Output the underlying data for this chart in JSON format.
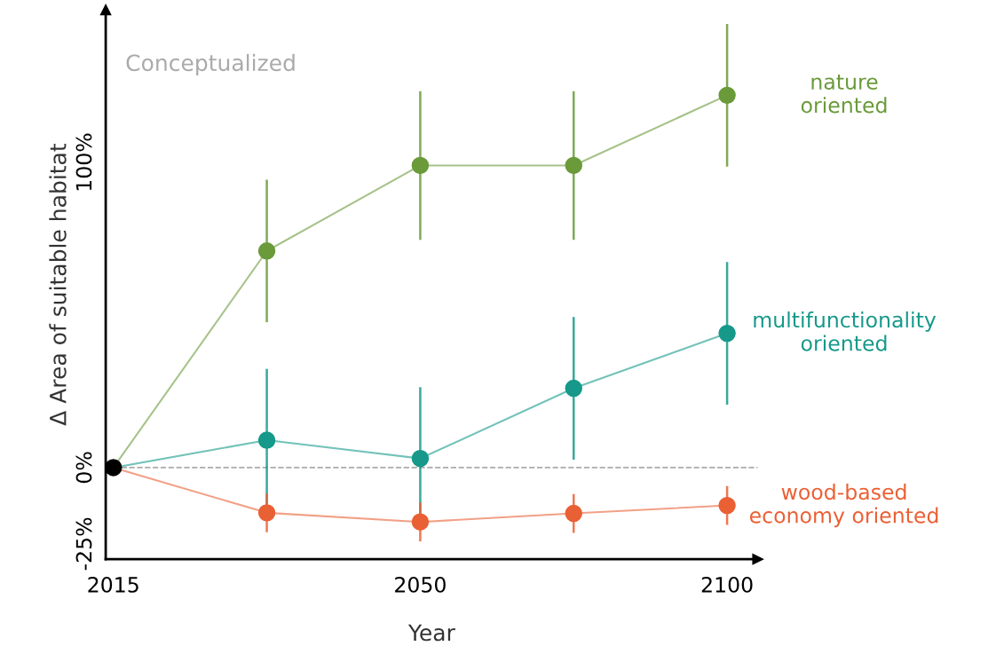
{
  "chart_data": {
    "type": "line",
    "xlabel": "Year",
    "ylabel": "Δ Area of suitable habitat",
    "categories": [
      "2015",
      null,
      "2050",
      null,
      "2100"
    ],
    "ylim": [
      -30,
      150
    ],
    "yticks": [
      {
        "value": -25,
        "label": "-25%"
      },
      {
        "value": 0,
        "label": "0%"
      },
      {
        "value": 100,
        "label": "100%"
      }
    ],
    "series": [
      {
        "name": "nature\noriented",
        "color": "#6a9a3a",
        "values": [
          0,
          71,
          99,
          99,
          122
        ],
        "errors": [
          null,
          23,
          24,
          24,
          23
        ]
      },
      {
        "name": "multifunctionality\noriented",
        "color": "#16998a",
        "values": [
          0,
          9,
          3,
          26,
          44
        ],
        "errors": [
          null,
          23,
          23,
          23,
          23
        ]
      },
      {
        "name": "wood-based\neconomy oriented",
        "color": "#ea6035",
        "values": [
          0,
          -14.8,
          -17.8,
          -15,
          -12.4
        ],
        "errors": [
          null,
          6,
          6,
          6,
          6
        ]
      },
      {
        "type": "scatter",
        "color": "#000000",
        "values": [
          0,
          null,
          null,
          null,
          null
        ]
      }
    ],
    "ref_lines": [
      {
        "axis": "y",
        "value": 0,
        "color": "#aaaaaa",
        "line_style": "dashed"
      }
    ],
    "annotations": [
      "Conceptualized"
    ],
    "marker": "circle",
    "grid": false,
    "legend": false
  }
}
